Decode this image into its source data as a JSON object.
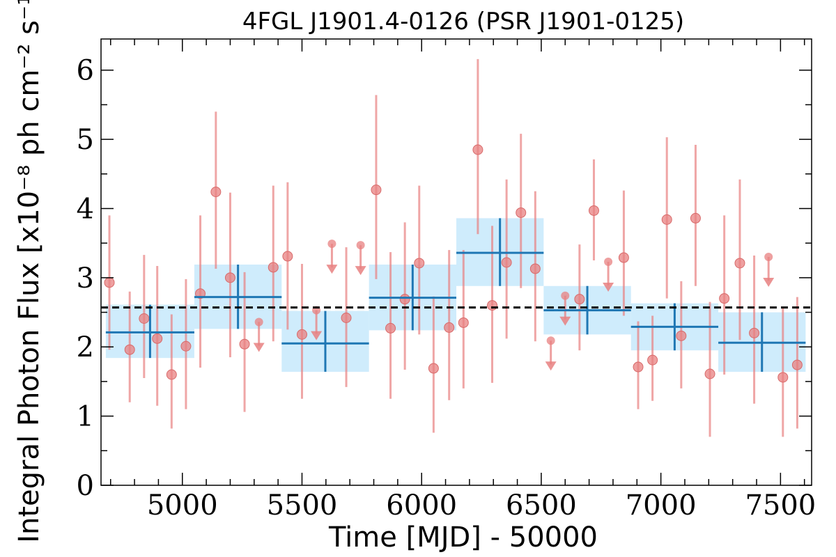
{
  "chart_data": {
    "type": "scatter",
    "title": "4FGL J1901.4-0126 (PSR J1901-0125)",
    "xlabel": "Time [MJD] - 50000",
    "ylabel": "Integral Photon Flux [x10⁻⁸ ph cm⁻² s⁻¹]",
    "xlim": [
      4660,
      7630
    ],
    "ylim": [
      0,
      6.45
    ],
    "xticks": [
      5000,
      5500,
      6000,
      6500,
      7000,
      7500
    ],
    "yticks": [
      0,
      1,
      2,
      3,
      4,
      5,
      6
    ],
    "reference_level": 2.57,
    "colors": {
      "points": "#e88080",
      "bins_fill": "#bfe6fb",
      "bins_line": "#1f77b4",
      "reference": "#000000"
    },
    "series": [
      {
        "kind": "points",
        "points": [
          {
            "x": 4695,
            "y": 2.93,
            "lo": 1.96,
            "hi": 3.9
          },
          {
            "x": 4780,
            "y": 1.96,
            "lo": 1.2,
            "hi": 2.8
          },
          {
            "x": 4840,
            "y": 2.41,
            "lo": 1.55,
            "hi": 3.33
          },
          {
            "x": 4895,
            "y": 2.12,
            "lo": 1.15,
            "hi": 3.17
          },
          {
            "x": 4955,
            "y": 1.6,
            "lo": 0.82,
            "hi": 2.47
          },
          {
            "x": 5015,
            "y": 2.01,
            "lo": 1.1,
            "hi": 2.98
          },
          {
            "x": 5075,
            "y": 2.77,
            "lo": 1.7,
            "hi": 3.9
          },
          {
            "x": 5140,
            "y": 4.24,
            "lo": 3.13,
            "hi": 5.4
          },
          {
            "x": 5200,
            "y": 3.0,
            "lo": 1.85,
            "hi": 4.23
          },
          {
            "x": 5260,
            "y": 2.04,
            "lo": 1.06,
            "hi": 3.08
          },
          {
            "x": 5380,
            "y": 3.15,
            "lo": 2.08,
            "hi": 4.33
          },
          {
            "x": 5440,
            "y": 3.31,
            "lo": 2.25,
            "hi": 4.38
          },
          {
            "x": 5500,
            "y": 2.18,
            "lo": 1.25,
            "hi": 3.2
          },
          {
            "x": 5685,
            "y": 2.42,
            "lo": 1.42,
            "hi": 3.44
          },
          {
            "x": 5810,
            "y": 4.27,
            "lo": 2.98,
            "hi": 5.64
          },
          {
            "x": 5870,
            "y": 2.27,
            "lo": 1.25,
            "hi": 3.37
          },
          {
            "x": 5930,
            "y": 2.69,
            "lo": 1.67,
            "hi": 3.8
          },
          {
            "x": 5990,
            "y": 3.21,
            "lo": 2.18,
            "hi": 4.33
          },
          {
            "x": 6050,
            "y": 1.69,
            "lo": 0.76,
            "hi": 2.73
          },
          {
            "x": 6115,
            "y": 2.28,
            "lo": 1.23,
            "hi": 3.4
          },
          {
            "x": 6175,
            "y": 2.35,
            "lo": 1.4,
            "hi": 3.4
          },
          {
            "x": 6235,
            "y": 4.85,
            "lo": 3.63,
            "hi": 6.16
          },
          {
            "x": 6295,
            "y": 2.6,
            "lo": 1.48,
            "hi": 3.75
          },
          {
            "x": 6355,
            "y": 3.22,
            "lo": 2.12,
            "hi": 4.42
          },
          {
            "x": 6415,
            "y": 3.94,
            "lo": 2.85,
            "hi": 5.08
          },
          {
            "x": 6475,
            "y": 3.13,
            "lo": 2.08,
            "hi": 4.25
          },
          {
            "x": 6660,
            "y": 2.69,
            "lo": 1.95,
            "hi": 3.48
          },
          {
            "x": 6720,
            "y": 3.97,
            "lo": 3.25,
            "hi": 4.71
          },
          {
            "x": 6845,
            "y": 3.29,
            "lo": 2.45,
            "hi": 4.26
          },
          {
            "x": 6905,
            "y": 1.71,
            "lo": 1.1,
            "hi": 2.37
          },
          {
            "x": 6965,
            "y": 1.81,
            "lo": 1.22,
            "hi": 2.45
          },
          {
            "x": 7025,
            "y": 3.84,
            "lo": 2.7,
            "hi": 5.03
          },
          {
            "x": 7085,
            "y": 2.16,
            "lo": 1.4,
            "hi": 2.95
          },
          {
            "x": 7145,
            "y": 3.86,
            "lo": 2.88,
            "hi": 4.92
          },
          {
            "x": 7205,
            "y": 1.61,
            "lo": 0.7,
            "hi": 2.65
          },
          {
            "x": 7265,
            "y": 2.7,
            "lo": 1.6,
            "hi": 3.9
          },
          {
            "x": 7330,
            "y": 3.21,
            "lo": 2.1,
            "hi": 4.42
          },
          {
            "x": 7390,
            "y": 2.2,
            "lo": 1.18,
            "hi": 3.32
          },
          {
            "x": 7510,
            "y": 1.56,
            "lo": 0.7,
            "hi": 2.56
          },
          {
            "x": 7570,
            "y": 1.74,
            "lo": 0.82,
            "hi": 2.72
          }
        ]
      },
      {
        "kind": "upper_limits",
        "points": [
          {
            "x": 5320,
            "y": 2.36
          },
          {
            "x": 5560,
            "y": 2.53
          },
          {
            "x": 5625,
            "y": 3.49
          },
          {
            "x": 5745,
            "y": 3.47
          },
          {
            "x": 6540,
            "y": 2.09
          },
          {
            "x": 6600,
            "y": 2.74
          },
          {
            "x": 6780,
            "y": 3.23
          },
          {
            "x": 7450,
            "y": 3.3
          }
        ]
      },
      {
        "kind": "bins",
        "bins": [
          {
            "x0": 4680,
            "x1": 5050,
            "y": 2.21,
            "lo": 1.84,
            "hi": 2.61
          },
          {
            "x0": 5050,
            "x1": 5415,
            "y": 2.72,
            "lo": 2.26,
            "hi": 3.19
          },
          {
            "x0": 5415,
            "x1": 5780,
            "y": 2.05,
            "lo": 1.64,
            "hi": 2.52
          },
          {
            "x0": 5780,
            "x1": 6145,
            "y": 2.71,
            "lo": 2.24,
            "hi": 3.19
          },
          {
            "x0": 6145,
            "x1": 6510,
            "y": 3.36,
            "lo": 2.88,
            "hi": 3.86
          },
          {
            "x0": 6510,
            "x1": 6875,
            "y": 2.53,
            "lo": 2.18,
            "hi": 2.88
          },
          {
            "x0": 6875,
            "x1": 7240,
            "y": 2.29,
            "lo": 1.95,
            "hi": 2.63
          },
          {
            "x0": 7240,
            "x1": 7605,
            "y": 2.06,
            "lo": 1.64,
            "hi": 2.5
          }
        ]
      }
    ]
  }
}
